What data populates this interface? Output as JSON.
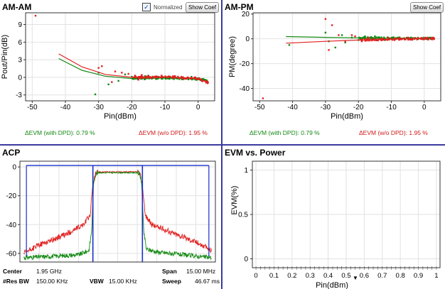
{
  "panels": {
    "amam": {
      "title": "AM-AM",
      "normalized_label": "Normalized",
      "normalized_checked": true,
      "show_coef_label": "Show Coef",
      "stat_with_dpd": "ΔEVM (with DPD):  0.79 %",
      "stat_without_dpd": "ΔEVM (w/o DPD):  1.95 %"
    },
    "ampm": {
      "title": "AM-PM",
      "show_coef_label": "Show Coef",
      "stat_with_dpd": "ΔEVM (with DPD):  0.79 %",
      "stat_without_dpd": "ΔEVM (w/o DPD):  1.95 %"
    },
    "acp": {
      "title": "ACP",
      "center_label": "Center",
      "center_value": "1.95 GHz",
      "span_label": "Span",
      "span_value": "15.00 MHz",
      "resbw_label": "#Res BW",
      "resbw_value": "150.00 KHz",
      "vbw_label": "VBW",
      "vbw_value": "15.00 KHz",
      "sweep_label": "Sweep",
      "sweep_value": "46.67 ms"
    },
    "evm": {
      "title": "EVM vs. Power",
      "dropdown_glyph": "▼"
    }
  },
  "colors": {
    "with_dpd": "#138a13",
    "without_dpd": "#e02020",
    "marker": "#1a2fc8",
    "divider": "#3a3aa0"
  },
  "chart_data": [
    {
      "id": "amam",
      "type": "scatter",
      "title": "AM-AM",
      "xlabel": "Pin(dBm)",
      "ylabel": "Pout/Pin(dB)",
      "xlim": [
        -52,
        5
      ],
      "ylim": [
        -4,
        11
      ],
      "xticks": [
        -50,
        -40,
        -30,
        -20,
        -10,
        0
      ],
      "yticks": [
        -3,
        0,
        3,
        6,
        9
      ],
      "grid": true,
      "series": [
        {
          "key": "with_dpd",
          "fit": [
            [
              -42,
              3.2
            ],
            [
              -35,
              1.2
            ],
            [
              -28,
              0.2
            ],
            [
              -20,
              -0.2
            ],
            [
              -10,
              -0.1
            ],
            [
              0,
              -0.3
            ],
            [
              3,
              -0.5
            ]
          ],
          "points": [
            [
              -31,
              -2.9
            ],
            [
              -30,
              0.8
            ],
            [
              -27,
              -1.2
            ],
            [
              -24,
              -0.6
            ],
            [
              -22,
              0.5
            ],
            [
              -20,
              0.1
            ],
            [
              -18,
              -0.3
            ],
            [
              -16,
              0.2
            ],
            [
              -14,
              -0.2
            ],
            [
              -12,
              0.1
            ],
            [
              -10,
              0.0
            ],
            [
              -8,
              -0.1
            ],
            [
              -6,
              0.0
            ],
            [
              -4,
              -0.2
            ],
            [
              -2,
              0.1
            ],
            [
              0,
              -0.3
            ],
            [
              2,
              -0.4
            ],
            [
              -15,
              0.3
            ],
            [
              -11,
              -0.1
            ],
            [
              -7,
              0.2
            ]
          ]
        },
        {
          "key": "without_dpd",
          "fit": [
            [
              -42,
              4.0
            ],
            [
              -35,
              1.8
            ],
            [
              -28,
              0.5
            ],
            [
              -20,
              0.0
            ],
            [
              -10,
              0.1
            ],
            [
              0,
              -0.2
            ],
            [
              3,
              -0.9
            ]
          ],
          "points": [
            [
              -49,
              10.5
            ],
            [
              -30,
              1.6
            ],
            [
              -29,
              1.9
            ],
            [
              -26,
              -0.8
            ],
            [
              -25,
              1.0
            ],
            [
              -23,
              0.8
            ],
            [
              -21,
              0.6
            ],
            [
              -19,
              0.3
            ],
            [
              -17,
              0.4
            ],
            [
              -15,
              0.2
            ],
            [
              -13,
              0.1
            ],
            [
              -11,
              0.3
            ],
            [
              -9,
              0.0
            ],
            [
              -7,
              0.2
            ],
            [
              -5,
              0.1
            ],
            [
              -3,
              -0.1
            ],
            [
              -1,
              0.0
            ],
            [
              1,
              -0.5
            ],
            [
              3,
              -0.9
            ],
            [
              -18,
              -0.4
            ]
          ]
        }
      ]
    },
    {
      "id": "ampm",
      "type": "scatter",
      "title": "AM-PM",
      "xlabel": "Pin(dBm)",
      "ylabel": "PM(degree)",
      "xlim": [
        -52,
        5
      ],
      "ylim": [
        -50,
        21
      ],
      "xticks": [
        -50,
        -40,
        -30,
        -20,
        -10,
        0
      ],
      "yticks": [
        -40,
        -20,
        0,
        20
      ],
      "grid": true,
      "series": [
        {
          "key": "with_dpd",
          "fit": [
            [
              -42,
              1.8
            ],
            [
              -30,
              1.2
            ],
            [
              -20,
              0.8
            ],
            [
              -10,
              0.5
            ],
            [
              0,
              0.3
            ],
            [
              3,
              0.2
            ]
          ],
          "points": [
            [
              -41,
              -5
            ],
            [
              -30,
              5
            ],
            [
              -29,
              -2
            ],
            [
              -27,
              -7
            ],
            [
              -25,
              3
            ],
            [
              -22,
              1
            ],
            [
              -20,
              -1
            ],
            [
              -18,
              2
            ],
            [
              -16,
              0
            ],
            [
              -14,
              1
            ],
            [
              -12,
              -1
            ],
            [
              -10,
              0
            ],
            [
              -8,
              1
            ],
            [
              -6,
              0
            ],
            [
              -4,
              1
            ],
            [
              -2,
              0
            ],
            [
              0,
              0
            ],
            [
              2,
              1
            ],
            [
              -24,
              -3
            ],
            [
              -15,
              2
            ]
          ]
        },
        {
          "key": "without_dpd",
          "fit": [
            [
              -42,
              -3.5
            ],
            [
              -30,
              -2.0
            ],
            [
              -20,
              -1.0
            ],
            [
              -10,
              -0.3
            ],
            [
              0,
              0.2
            ],
            [
              3,
              0.3
            ]
          ],
          "points": [
            [
              -49,
              -48
            ],
            [
              -30,
              16
            ],
            [
              -29,
              -9
            ],
            [
              -28,
              11
            ],
            [
              -26,
              3
            ],
            [
              -24,
              -2
            ],
            [
              -21,
              2
            ],
            [
              -19,
              -2
            ],
            [
              -17,
              1
            ],
            [
              -15,
              -1
            ],
            [
              -13,
              0
            ],
            [
              -11,
              1
            ],
            [
              -9,
              -1
            ],
            [
              -7,
              0
            ],
            [
              -5,
              1
            ],
            [
              -3,
              0
            ],
            [
              -1,
              0
            ],
            [
              1,
              1
            ],
            [
              3,
              0
            ],
            [
              -22,
              3
            ]
          ]
        }
      ]
    },
    {
      "id": "acp",
      "type": "line",
      "title": "ACP",
      "xlim": [
        -7.5,
        7.5
      ],
      "ylim": [
        -66,
        4
      ],
      "yticks": [
        0,
        -20,
        -40,
        -60
      ],
      "grid": true,
      "markers": {
        "channel_edges": [
          -1.9,
          1.9
        ],
        "ref_level": 1,
        "outer_edges": [
          -7.0,
          7.0
        ]
      },
      "series": [
        {
          "key": "without_dpd",
          "profile": [
            [
              -7.2,
              -60
            ],
            [
              -6,
              -54
            ],
            [
              -4,
              -47
            ],
            [
              -2.6,
              -40
            ],
            [
              -2.1,
              -33
            ],
            [
              -1.9,
              -12
            ],
            [
              -1.7,
              -5
            ],
            [
              -1.5,
              -3.5
            ],
            [
              1.5,
              -3.5
            ],
            [
              1.7,
              -5
            ],
            [
              1.9,
              -12
            ],
            [
              2.1,
              -33
            ],
            [
              2.6,
              -40
            ],
            [
              4,
              -45
            ],
            [
              6,
              -52
            ],
            [
              7.2,
              -58
            ]
          ],
          "noise": 1.2
        },
        {
          "key": "with_dpd",
          "profile": [
            [
              -7.2,
              -63
            ],
            [
              -5,
              -62
            ],
            [
              -3,
              -61
            ],
            [
              -2.2,
              -58
            ],
            [
              -2.0,
              -45
            ],
            [
              -1.85,
              -12
            ],
            [
              -1.7,
              -5
            ],
            [
              -1.5,
              -4
            ],
            [
              1.5,
              -4
            ],
            [
              1.7,
              -5
            ],
            [
              1.85,
              -12
            ],
            [
              2.0,
              -45
            ],
            [
              2.2,
              -57
            ],
            [
              3,
              -59
            ],
            [
              5,
              -61
            ],
            [
              7.2,
              -63
            ]
          ],
          "noise": 1.0
        }
      ]
    },
    {
      "id": "evm",
      "type": "line",
      "title": "EVM vs. Power",
      "xlabel": "Pin(dBm)",
      "ylabel": "EVM(%)",
      "xlim": [
        -0.02,
        1.02
      ],
      "ylim": [
        -0.1,
        1.1
      ],
      "xticks": [
        0,
        0.1,
        0.2,
        0.3,
        0.4,
        0.5,
        0.6,
        0.7,
        0.8,
        0.9,
        1
      ],
      "yticks": [
        0,
        0.5,
        1
      ],
      "grid": true,
      "series": []
    }
  ]
}
